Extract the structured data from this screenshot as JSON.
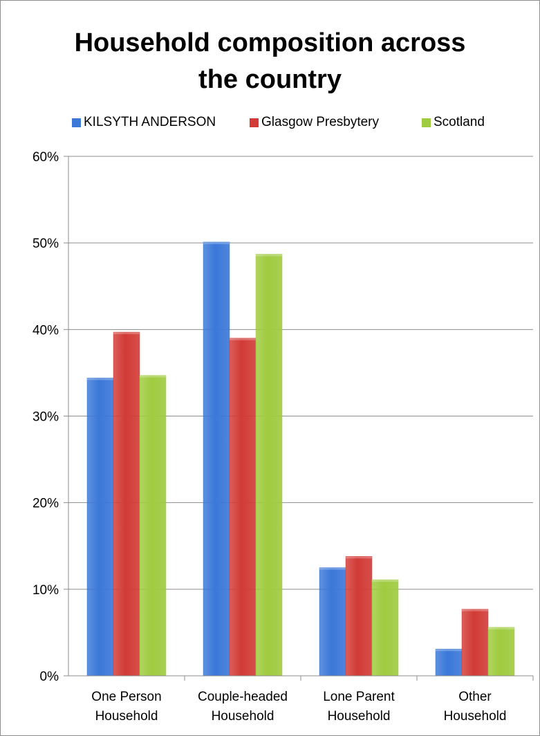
{
  "chart_data": {
    "type": "bar",
    "title": "Household composition across the country",
    "title_lines": [
      "Household composition across",
      "the country"
    ],
    "categories": [
      [
        "One Person",
        "Household"
      ],
      [
        "Couple-headed",
        "Household"
      ],
      [
        "Lone Parent",
        "Household"
      ],
      [
        "Other",
        "Household"
      ]
    ],
    "series": [
      {
        "name": "KILSYTH ANDERSON",
        "color": "#3b78d8",
        "values": [
          0.344,
          0.501,
          0.125,
          0.031
        ]
      },
      {
        "name": "Glasgow Presbytery",
        "color": "#d23b36",
        "values": [
          0.397,
          0.39,
          0.138,
          0.077
        ]
      },
      {
        "name": "Scotland",
        "color": "#9fcb3f",
        "values": [
          0.347,
          0.487,
          0.111,
          0.056
        ]
      }
    ],
    "ylim": [
      0,
      0.6
    ],
    "y_ticks": [
      0,
      0.1,
      0.2,
      0.3,
      0.4,
      0.5,
      0.6
    ],
    "y_tick_labels": [
      "0%",
      "10%",
      "20%",
      "30%",
      "40%",
      "50%",
      "60%"
    ],
    "grid": true,
    "legend_position": "top"
  }
}
